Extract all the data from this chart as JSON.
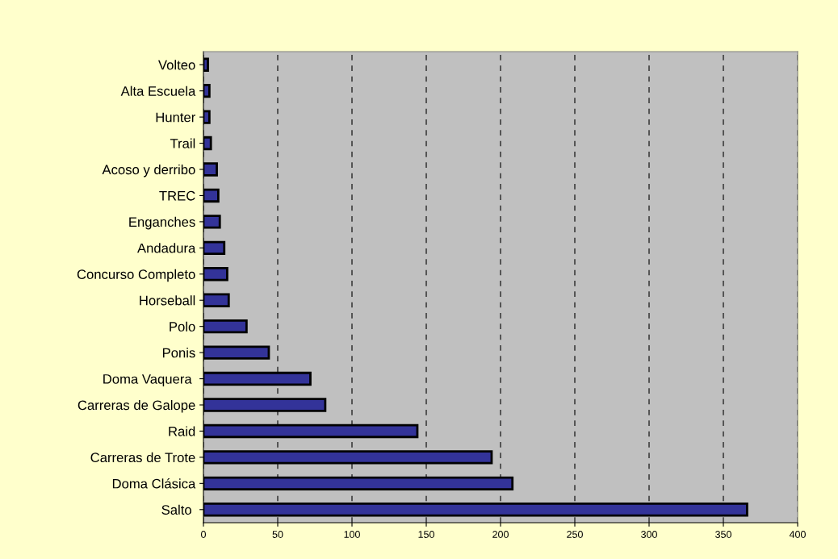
{
  "chart_data": {
    "type": "bar",
    "orientation": "horizontal",
    "categories": [
      "Volteo",
      "Alta Escuela",
      "Hunter",
      "Trail",
      "Acoso y derribo",
      "TREC",
      "Enganches",
      "Andadura",
      "Concurso Completo",
      "Horseball",
      "Polo",
      "Ponis",
      "Doma Vaquera ",
      "Carreras de Galope",
      "Raid",
      "Carreras de Trote",
      "Doma Clásica",
      "Salto "
    ],
    "values": [
      3,
      4,
      4,
      5,
      9,
      10,
      11,
      14,
      16,
      17,
      29,
      44,
      72,
      82,
      144,
      194,
      208,
      366
    ],
    "color": "#333399",
    "xlim": [
      0,
      400
    ],
    "xticks": [
      0,
      50,
      100,
      150,
      200,
      250,
      300,
      350,
      400
    ],
    "grid": "x",
    "legend": false
  }
}
